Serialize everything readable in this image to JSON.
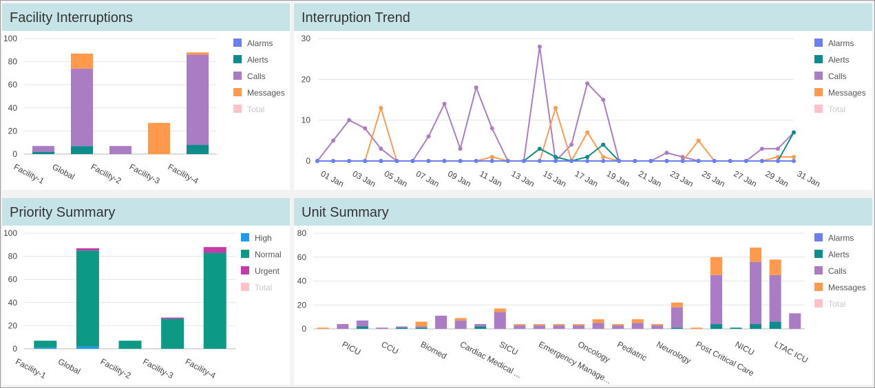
{
  "panels": {
    "facility_interruptions": {
      "title": "Facility Interruptions"
    },
    "interruption_trend": {
      "title": "Interruption Trend"
    },
    "priority_summary": {
      "title": "Priority Summary"
    },
    "unit_summary": {
      "title": "Unit Summary"
    }
  },
  "colors": {
    "Alarms": "#6b7ff0",
    "Alerts": "#0e8c8c",
    "Calls": "#aa7cc4",
    "Messages": "#ff9a4d",
    "Total": "#ffc2c8",
    "High": "#1e9bf0",
    "Normal": "#0c9a84",
    "Urgent": "#c33aa8"
  },
  "chart_data": [
    {
      "id": "facility_interruptions",
      "type": "bar",
      "stacked": true,
      "categories": [
        "Facility-1",
        "Global",
        "Facility-2",
        "Facility-3",
        "Facility-4"
      ],
      "series": [
        {
          "name": "Alarms",
          "values": [
            0,
            0,
            0,
            0,
            0
          ]
        },
        {
          "name": "Alerts",
          "values": [
            2,
            7,
            0,
            0,
            8
          ]
        },
        {
          "name": "Calls",
          "values": [
            5,
            67,
            7,
            0,
            78
          ]
        },
        {
          "name": "Messages",
          "values": [
            0,
            13,
            0,
            27,
            2
          ]
        }
      ],
      "legend": [
        "Alarms",
        "Alerts",
        "Calls",
        "Messages",
        "Total"
      ],
      "legend_hidden": [
        "Total"
      ],
      "ylim": [
        0,
        100
      ],
      "yticks": [
        0,
        20,
        40,
        60,
        80,
        100
      ],
      "legend_position": "right"
    },
    {
      "id": "interruption_trend",
      "type": "line",
      "x": [
        "01 Jan",
        "02 Jan",
        "03 Jan",
        "04 Jan",
        "05 Jan",
        "06 Jan",
        "07 Jan",
        "08 Jan",
        "09 Jan",
        "10 Jan",
        "11 Jan",
        "12 Jan",
        "13 Jan",
        "14 Jan",
        "15 Jan",
        "16 Jan",
        "17 Jan",
        "18 Jan",
        "19 Jan",
        "20 Jan",
        "21 Jan",
        "22 Jan",
        "23 Jan",
        "24 Jan",
        "25 Jan",
        "26 Jan",
        "27 Jan",
        "28 Jan",
        "29 Jan",
        "30 Jan",
        "31 Jan"
      ],
      "xtick_labels": [
        "01 Jan",
        "03 Jan",
        "05 Jan",
        "07 Jan",
        "09 Jan",
        "11 Jan",
        "13 Jan",
        "15 Jan",
        "17 Jan",
        "19 Jan",
        "21 Jan",
        "23 Jan",
        "25 Jan",
        "27 Jan",
        "29 Jan",
        "31 Jan"
      ],
      "series": [
        {
          "name": "Alarms",
          "values": [
            0,
            0,
            0,
            0,
            0,
            0,
            0,
            0,
            0,
            0,
            0,
            0,
            0,
            0,
            0,
            0,
            0,
            0,
            0,
            0,
            0,
            0,
            0,
            0,
            0,
            0,
            0,
            0,
            0,
            0,
            0
          ]
        },
        {
          "name": "Alerts",
          "values": [
            0,
            0,
            0,
            0,
            0,
            0,
            0,
            0,
            0,
            0,
            0,
            0,
            0,
            0,
            3,
            1,
            0,
            1,
            4,
            0,
            0,
            0,
            0,
            0,
            0,
            0,
            0,
            0,
            0,
            0,
            7
          ]
        },
        {
          "name": "Calls",
          "values": [
            0,
            5,
            10,
            8,
            3,
            0,
            0,
            6,
            14,
            3,
            18,
            8,
            0,
            0,
            28,
            0,
            4,
            19,
            15,
            0,
            0,
            0,
            2,
            1,
            0,
            0,
            0,
            0,
            3,
            3,
            7
          ]
        },
        {
          "name": "Messages",
          "values": [
            0,
            0,
            0,
            0,
            13,
            0,
            0,
            0,
            0,
            0,
            0,
            1,
            0,
            0,
            0,
            13,
            0,
            7,
            1,
            0,
            0,
            0,
            0,
            0,
            5,
            0,
            0,
            0,
            0,
            1,
            1
          ]
        }
      ],
      "legend": [
        "Alarms",
        "Alerts",
        "Calls",
        "Messages",
        "Total"
      ],
      "legend_hidden": [
        "Total"
      ],
      "ylim": [
        0,
        30
      ],
      "yticks": [
        0,
        10,
        20,
        30
      ],
      "legend_position": "right"
    },
    {
      "id": "priority_summary",
      "type": "bar",
      "stacked": true,
      "categories": [
        "Facility-1",
        "Global",
        "Facility-2",
        "Facility-3",
        "Facility-4"
      ],
      "series": [
        {
          "name": "High",
          "values": [
            1,
            2,
            0,
            0,
            0
          ]
        },
        {
          "name": "Normal",
          "values": [
            6,
            83,
            7,
            26,
            83
          ]
        },
        {
          "name": "Urgent",
          "values": [
            0,
            2,
            0,
            1,
            5
          ]
        }
      ],
      "legend": [
        "High",
        "Normal",
        "Urgent",
        "Total"
      ],
      "legend_hidden": [
        "Total"
      ],
      "ylim": [
        0,
        100
      ],
      "yticks": [
        0,
        20,
        40,
        60,
        80,
        100
      ],
      "legend_position": "right"
    },
    {
      "id": "unit_summary",
      "type": "bar",
      "stacked": true,
      "categories": [
        "",
        "PICU",
        "",
        "CCU",
        "",
        "Biomed",
        "",
        "Cardiac Medical ...",
        "",
        "SICU",
        "",
        "Emergency Manage...",
        "",
        "Oncology",
        "",
        "Pediatric",
        "",
        "Neurology",
        "",
        "Post Critical Care",
        "",
        "NICU",
        "",
        "LTAC ICU"
      ],
      "series": [
        {
          "name": "Alarms",
          "values": [
            0,
            0,
            0,
            0,
            0,
            0,
            0,
            0,
            0,
            0,
            0,
            0,
            0,
            0,
            0,
            0,
            0,
            0,
            0,
            0,
            0,
            0,
            0,
            0
          ]
        },
        {
          "name": "Alerts",
          "values": [
            0,
            0,
            2,
            0,
            1,
            1,
            0,
            0,
            2,
            0,
            0,
            0,
            0,
            0,
            0,
            0,
            0,
            0,
            1,
            0,
            4,
            1,
            4,
            6
          ]
        },
        {
          "name": "Calls",
          "values": [
            0,
            4,
            5,
            1,
            1,
            1,
            11,
            7,
            2,
            14,
            3,
            3,
            3,
            3,
            5,
            3,
            5,
            3,
            17,
            0,
            41,
            0,
            52,
            39
          ]
        },
        {
          "name": "Messages",
          "values": [
            1,
            0,
            0,
            0,
            0,
            4,
            0,
            2,
            0,
            3,
            1,
            1,
            1,
            1,
            3,
            1,
            3,
            1,
            4,
            1,
            15,
            0,
            12,
            13
          ]
        }
      ],
      "extra_bar": {
        "label": "",
        "calls": 13
      },
      "legend": [
        "Alarms",
        "Alerts",
        "Calls",
        "Messages",
        "Total"
      ],
      "legend_hidden": [
        "Total"
      ],
      "ylim": [
        0,
        80
      ],
      "yticks": [
        0,
        20,
        40,
        60,
        80
      ],
      "legend_position": "right"
    }
  ]
}
